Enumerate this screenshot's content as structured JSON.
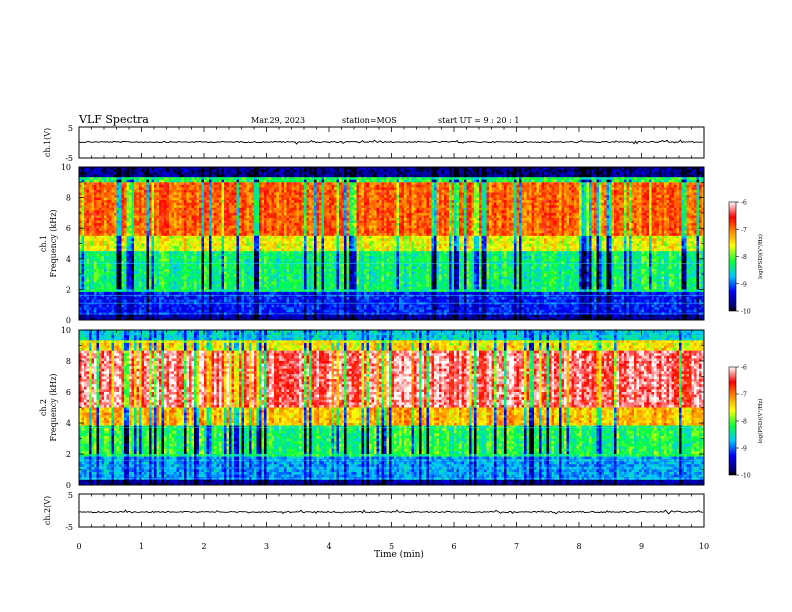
{
  "header": {
    "title": "VLF Spectra",
    "date": "Mar.29, 2023",
    "station": "station=MOS",
    "start": "start UT =  9 : 20 : 1"
  },
  "chart_data": [
    {
      "type": "line",
      "name": "ch1-waveform",
      "ylabel": "ch.1(V)",
      "ylim": [
        -5,
        5
      ],
      "yticks": [
        "5",
        "-5"
      ],
      "xlim": [
        0,
        10
      ]
    },
    {
      "type": "heatmap",
      "name": "ch1-spectrogram",
      "ylabel_top": "ch.1",
      "ylabel": "Frequency (kHz)",
      "ylim": [
        0,
        10
      ],
      "yticks": [
        "0",
        "2",
        "4",
        "6",
        "8",
        "10"
      ],
      "xlim": [
        0,
        10
      ],
      "colorbar": {
        "label": "log(PSD)(V²/Hz)",
        "min": -10,
        "max": -6,
        "ticks": [
          "-6",
          "-7",
          "-8",
          "-9",
          "-10"
        ]
      },
      "bands": [
        {
          "from": 0,
          "to": 0.3,
          "level": -9.6
        },
        {
          "from": 0.3,
          "to": 1.9,
          "level": -9.2
        },
        {
          "from": 1.9,
          "to": 4.5,
          "level": -8.3
        },
        {
          "from": 4.5,
          "to": 5.5,
          "level": -7.6
        },
        {
          "from": 5.5,
          "to": 9.0,
          "level": -6.9
        },
        {
          "from": 9.0,
          "to": 9.4,
          "level": -8.2
        },
        {
          "from": 9.4,
          "to": 10,
          "level": -9.7
        }
      ]
    },
    {
      "type": "heatmap",
      "name": "ch2-spectrogram",
      "ylabel_top": "ch.2",
      "ylabel": "Frequency (kHz)",
      "ylim": [
        0,
        10
      ],
      "yticks": [
        "0",
        "2",
        "4",
        "6",
        "8",
        "10"
      ],
      "xlim": [
        0,
        10
      ],
      "colorbar": {
        "label": "log(PSD)(V²/Hz)",
        "min": -10,
        "max": -6,
        "ticks": [
          "-6",
          "-7",
          "-8",
          "-9",
          "-10"
        ]
      },
      "bands": [
        {
          "from": 0,
          "to": 0.3,
          "level": -9.6
        },
        {
          "from": 0.3,
          "to": 1.8,
          "level": -8.8
        },
        {
          "from": 1.8,
          "to": 3.8,
          "level": -8.2
        },
        {
          "from": 3.8,
          "to": 5.0,
          "level": -7.3
        },
        {
          "from": 5.0,
          "to": 8.6,
          "level": -6.3
        },
        {
          "from": 8.6,
          "to": 9.4,
          "level": -7.5
        },
        {
          "from": 9.4,
          "to": 10,
          "level": -8.6
        }
      ]
    },
    {
      "type": "line",
      "name": "ch2-waveform",
      "ylabel": "ch.2(V)",
      "ylim": [
        -5,
        5
      ],
      "yticks": [
        "5",
        "-5"
      ],
      "xlim": [
        0,
        10
      ]
    }
  ],
  "xaxis": {
    "label": "Time (min)",
    "ticks": [
      "0",
      "1",
      "2",
      "3",
      "4",
      "5",
      "6",
      "7",
      "8",
      "9",
      "10"
    ]
  }
}
